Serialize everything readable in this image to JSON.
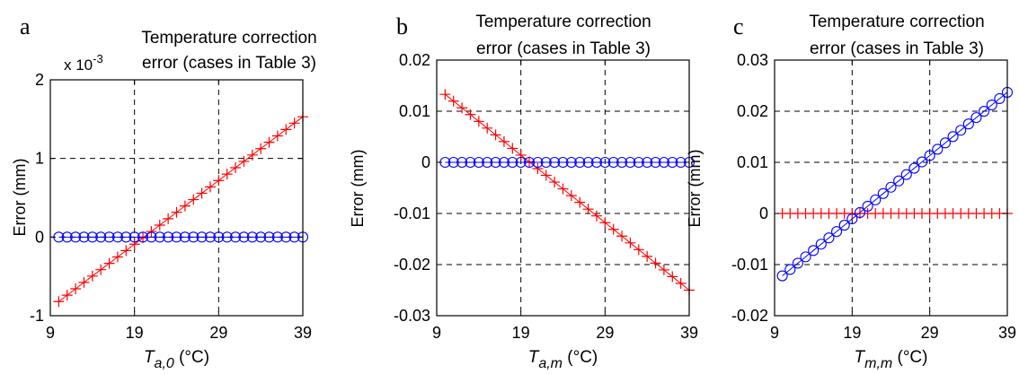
{
  "chart_data": [
    {
      "type": "line",
      "panel_letter": "a",
      "title_lines": [
        "Temperature correction",
        "error (cases in Table 3)"
      ],
      "ylabel": "Error (mm)",
      "xlabel_var": "T",
      "xlabel_sub": "a,0",
      "xlabel_unit": " (°C)",
      "y_exponent_label": "x 10",
      "y_exponent_power": "-3",
      "xlim": [
        9,
        39
      ],
      "ylim": [
        -1,
        2
      ],
      "xticks": [
        9,
        19,
        29,
        39
      ],
      "yticks": [
        -1,
        0,
        1,
        2
      ],
      "xtick_labels": [
        "9",
        "19",
        "29",
        "39"
      ],
      "ytick_labels": [
        "-1",
        "0",
        "1",
        "2"
      ],
      "grid": true,
      "series": [
        {
          "marker": "cross",
          "color": "#ff0000",
          "x_start": 10,
          "x_end": 39,
          "y_start": -0.82,
          "y_end": 1.53
        },
        {
          "marker": "circle",
          "color": "#0000ff",
          "x_start": 10,
          "x_end": 39,
          "y_start": 0,
          "y_end": 0
        }
      ]
    },
    {
      "type": "line",
      "panel_letter": "b",
      "title_lines": [
        "Temperature correction",
        "error (cases in Table 3)"
      ],
      "ylabel": "Error (mm)",
      "xlabel_var": "T",
      "xlabel_sub": "a,m",
      "xlabel_unit": " (°C)",
      "xlim": [
        9,
        39
      ],
      "ylim": [
        -0.03,
        0.02
      ],
      "xticks": [
        9,
        19,
        29,
        39
      ],
      "yticks": [
        -0.03,
        -0.02,
        -0.01,
        0,
        0.01,
        0.02
      ],
      "xtick_labels": [
        "9",
        "19",
        "29",
        "39"
      ],
      "ytick_labels": [
        "-0.03",
        "-0.02",
        "-0.01",
        "0",
        "0.01",
        "0.02"
      ],
      "grid": true,
      "series": [
        {
          "marker": "cross",
          "color": "#ff0000",
          "x_start": 10,
          "x_end": 39,
          "y_start": 0.0133,
          "y_end": -0.025
        },
        {
          "marker": "circle",
          "color": "#0000ff",
          "x_start": 10,
          "x_end": 39,
          "y_start": 0,
          "y_end": 0
        }
      ]
    },
    {
      "type": "line",
      "panel_letter": "c",
      "title_lines": [
        "Temperature correction",
        "error (cases in Table 3)"
      ],
      "ylabel": "Error (mm)",
      "xlabel_var": "T",
      "xlabel_sub": "m,m",
      "xlabel_unit": " (°C)",
      "xlim": [
        9,
        39
      ],
      "ylim": [
        -0.02,
        0.03
      ],
      "xticks": [
        9,
        19,
        29,
        39
      ],
      "yticks": [
        -0.02,
        -0.01,
        0,
        0.01,
        0.02,
        0.03
      ],
      "xtick_labels": [
        "9",
        "19",
        "29",
        "39"
      ],
      "ytick_labels": [
        "-0.02",
        "-0.01",
        "0",
        "0.01",
        "0.02",
        "0.03"
      ],
      "grid": true,
      "series": [
        {
          "marker": "cross",
          "color": "#ff0000",
          "x_start": 10,
          "x_end": 39,
          "y_start": 0,
          "y_end": 0
        },
        {
          "marker": "circle",
          "color": "#0000ff",
          "x_start": 10,
          "x_end": 39,
          "y_start": -0.0122,
          "y_end": 0.0237
        }
      ]
    }
  ]
}
